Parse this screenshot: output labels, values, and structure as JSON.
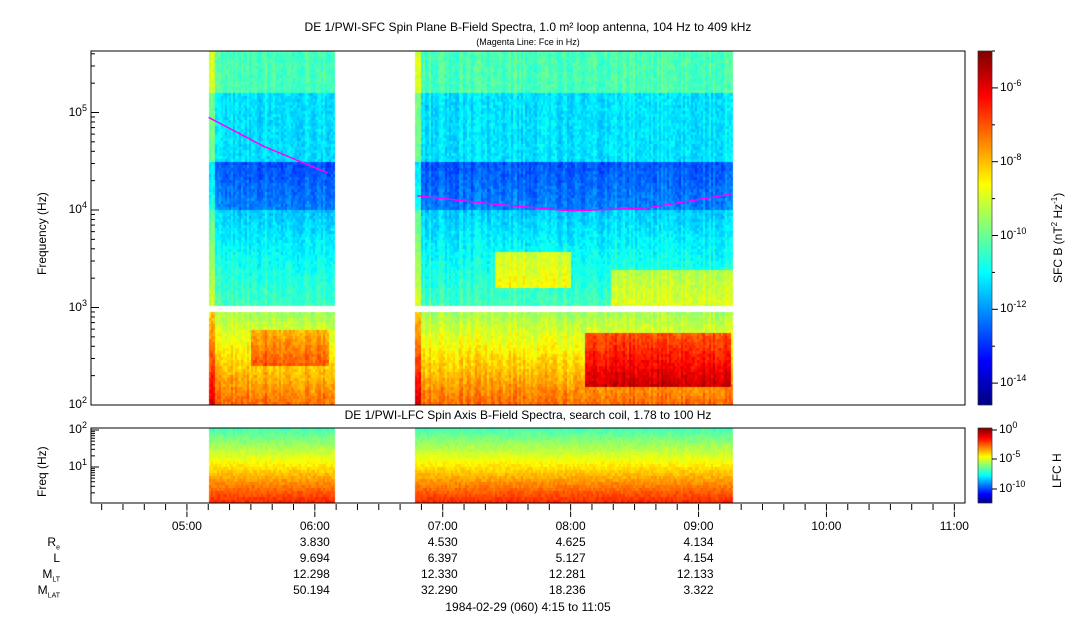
{
  "chart_data": [
    {
      "type": "heatmap",
      "title": "DE 1/PWI-SFC  Spin Plane B-Field Spectra, 1.0 m² loop antenna, 104 Hz to 409 kHz",
      "subtitle": "(Magenta Line: Fce in Hz)",
      "ylabel": "Frequency (Hz)",
      "yscale": "log",
      "ylim": [
        100,
        409000
      ],
      "yticks": [
        "10^2",
        "10^3",
        "10^4",
        "10^5"
      ],
      "xlim_hours": [
        4.25,
        11.0833
      ],
      "data_intervals_hours": [
        [
          5.17,
          6.15
        ],
        [
          6.78,
          9.27
        ]
      ],
      "colorbar": {
        "label": "SFC B (nT^2 Hz^-1)",
        "scale": "log",
        "range_exp": [
          -14.6,
          -5.0
        ],
        "ticks": [
          "10^-6",
          "10^-8",
          "10^-10",
          "10^-12",
          "10^-14"
        ]
      },
      "fce_line": {
        "color": "#ff00ff",
        "segments": [
          {
            "t": [
              5.17,
              5.6,
              6.1
            ],
            "f": [
              89000,
              45000,
              24000
            ]
          },
          {
            "t": [
              6.8,
              7.4,
              8.0,
              8.6,
              9.25
            ],
            "f": [
              14000,
              11500,
              9800,
              10500,
              14500
            ]
          }
        ]
      }
    },
    {
      "type": "heatmap",
      "title": "DE 1/PWI-LFC  Spin Axis B-Field Spectra, search coil, 1.78 to 100 Hz",
      "ylabel": "Freq (Hz)",
      "yscale": "log",
      "ylim": [
        1.78,
        100
      ],
      "yticks": [
        "10^1",
        "10^2"
      ],
      "colorbar": {
        "label": "LFC H",
        "scale": "log",
        "range_exp": [
          -12,
          0
        ],
        "ticks": [
          "10^0",
          "10^-5",
          "10^-10"
        ]
      }
    }
  ],
  "x_axis": {
    "ticks": [
      "05:00",
      "06:00",
      "07:00",
      "08:00",
      "09:00",
      "10:00",
      "11:00"
    ],
    "tick_hours": [
      5,
      6,
      7,
      8,
      9,
      10,
      11
    ]
  },
  "ephemeris": {
    "rows": [
      {
        "label": "R",
        "sub": "e",
        "values": [
          "3.830",
          "4.530",
          "4.625",
          "4.134"
        ]
      },
      {
        "label": "L",
        "sub": "",
        "values": [
          "9.694",
          "6.397",
          "5.127",
          "4.154"
        ]
      },
      {
        "label": "M",
        "sub": "LT",
        "values": [
          "12.298",
          "12.330",
          "12.281",
          "12.133"
        ]
      },
      {
        "label": "M",
        "sub": "LAT",
        "values": [
          "50.194",
          "32.290",
          "18.236",
          "3.322"
        ]
      }
    ]
  },
  "footer": "1984-02-29 (060) 4:15 to 11:05"
}
